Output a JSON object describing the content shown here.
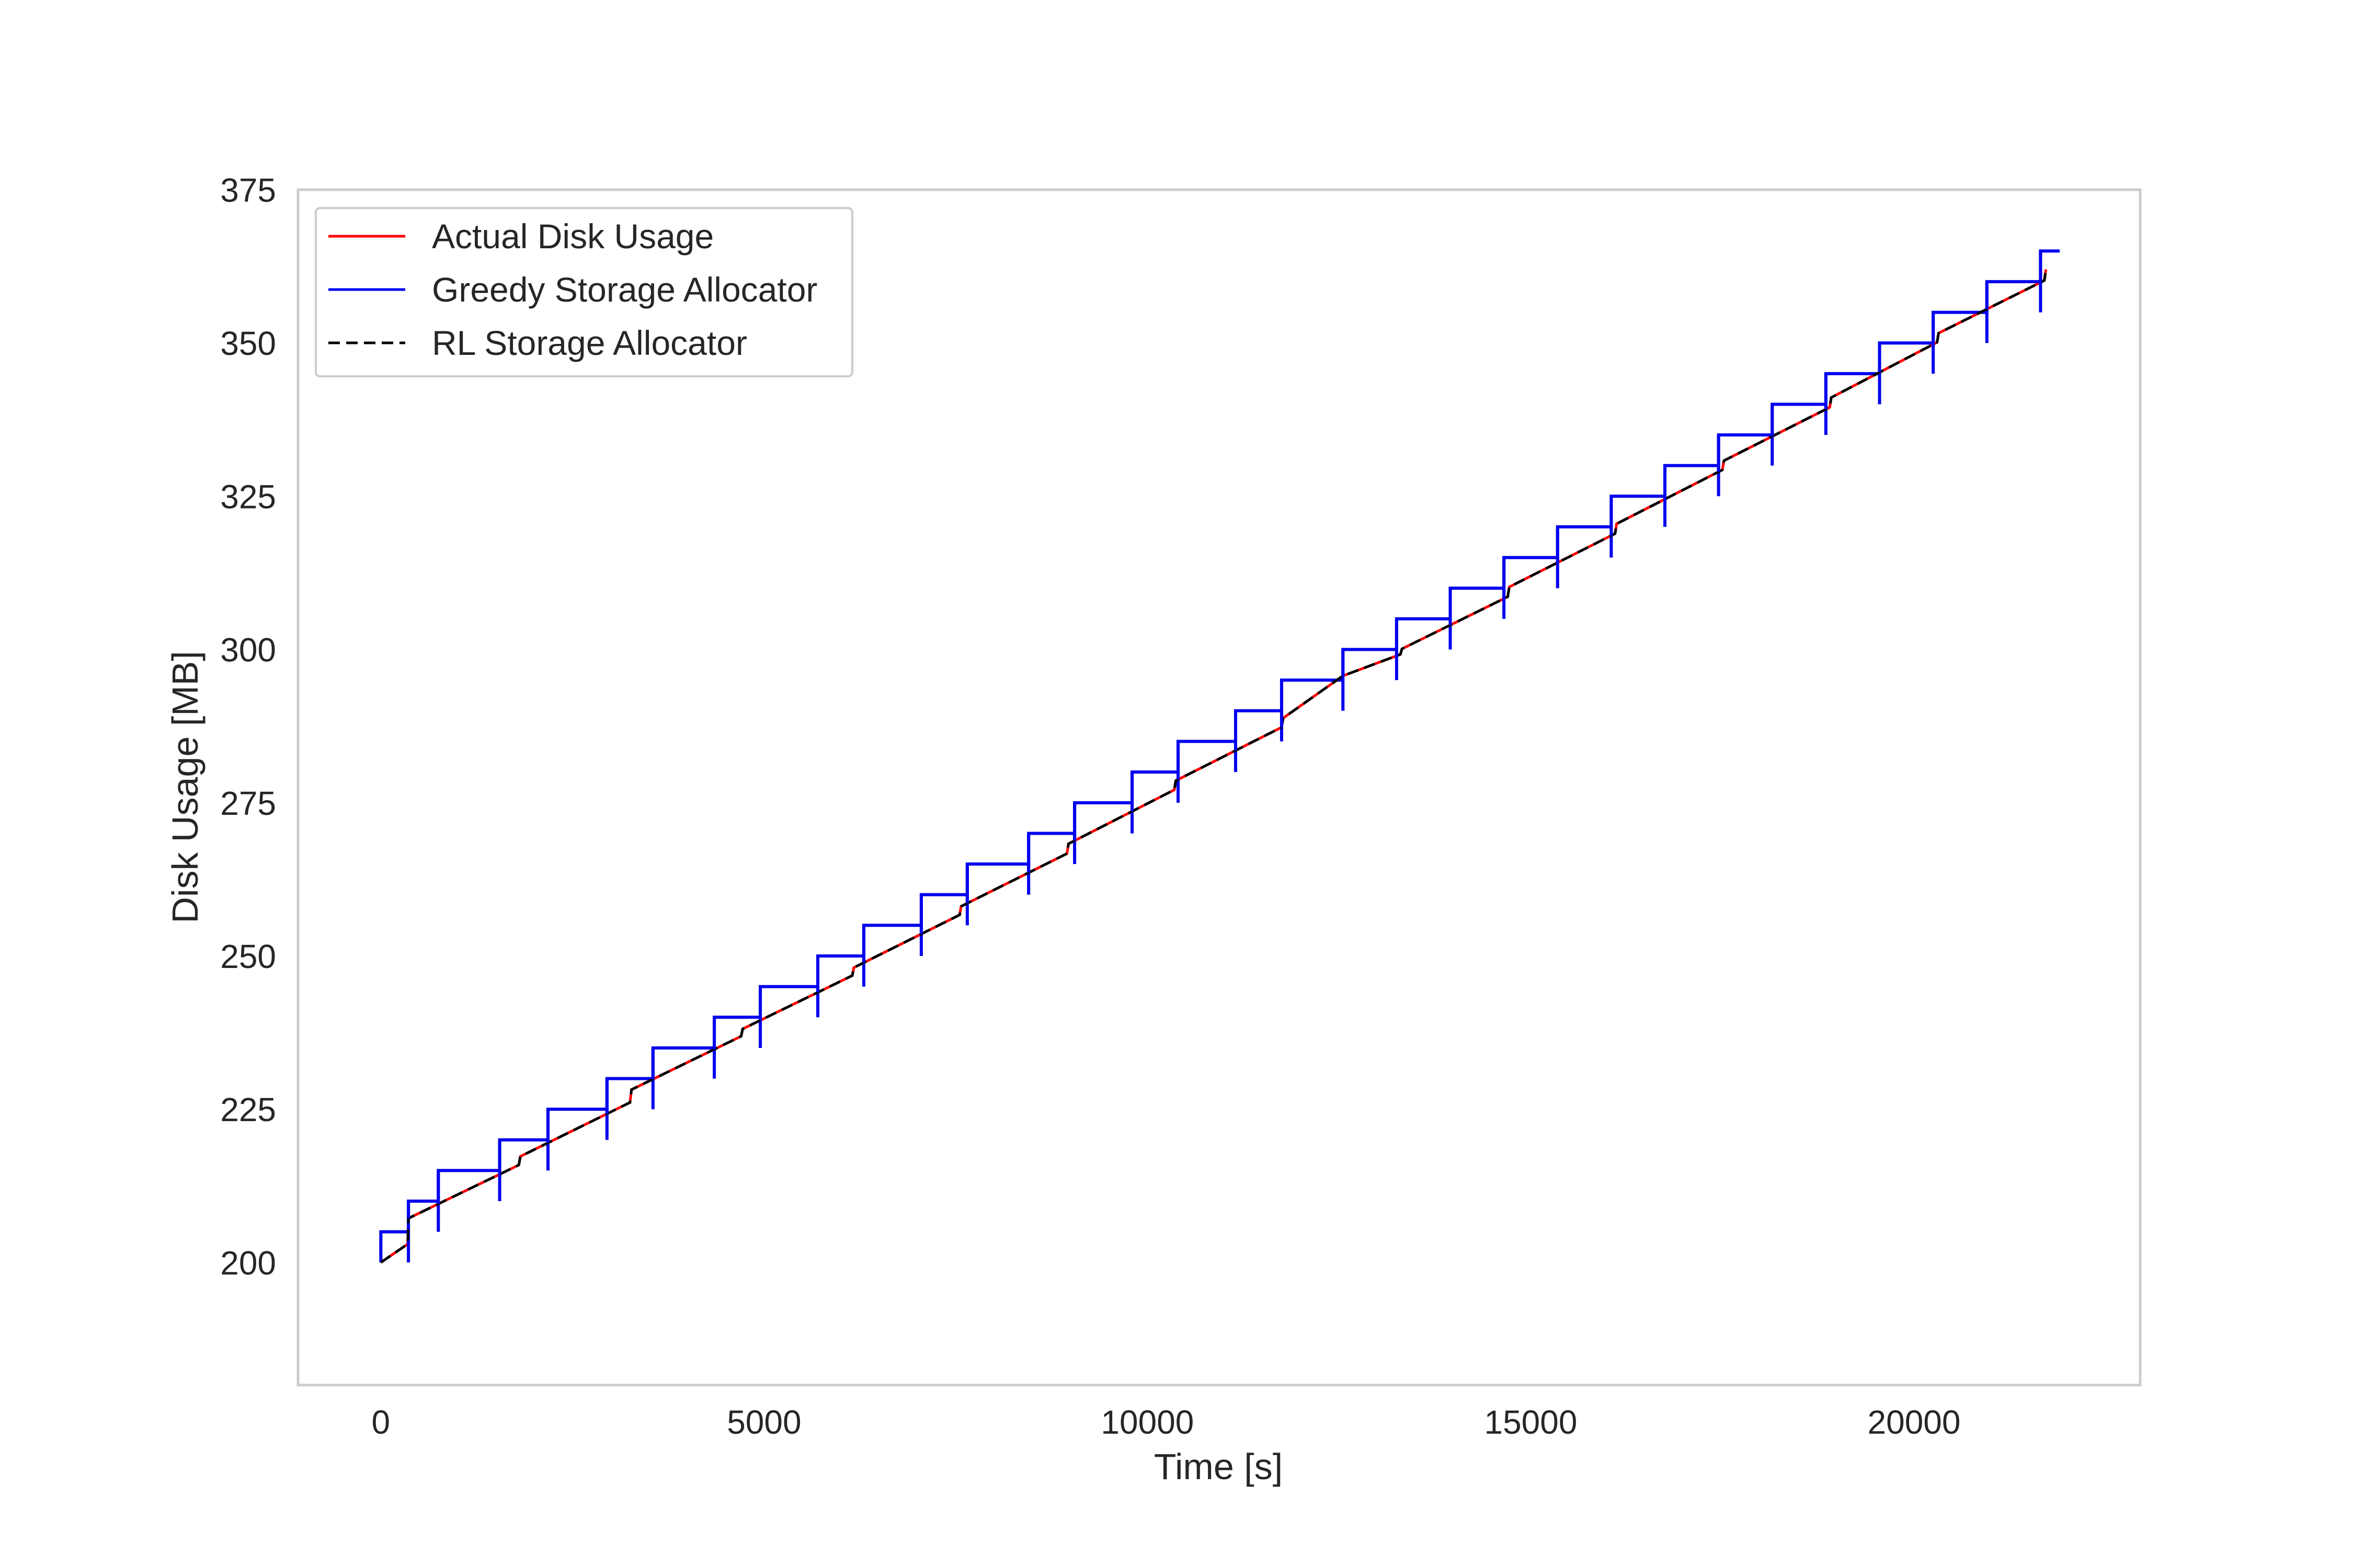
{
  "chart_data": {
    "type": "line",
    "title": "",
    "xlabel": "Time [s]",
    "ylabel": "Disk Usage [MB]",
    "xlim": [
      -1080,
      22950
    ],
    "ylim": [
      180,
      375
    ],
    "xticks": [
      0,
      5000,
      10000,
      15000,
      20000
    ],
    "yticks": [
      200,
      225,
      250,
      275,
      300,
      325,
      350,
      375
    ],
    "xtick_labels": [
      "0",
      "5000",
      "10000",
      "15000",
      "20000"
    ],
    "ytick_labels": [
      "200",
      "225",
      "250",
      "275",
      "300",
      "325",
      "350",
      "375"
    ],
    "grid": false,
    "legend_position": "upper-left",
    "series": [
      {
        "name": "Actual Disk Usage",
        "color": "#ff0000",
        "style": "solid",
        "x": [
          0,
          350,
          360,
          1800,
          1820,
          3250,
          3270,
          4700,
          4720,
          6150,
          6170,
          7550,
          7570,
          8950,
          8970,
          10350,
          10370,
          11750,
          11770,
          12550,
          13300,
          13320,
          14700,
          14720,
          16100,
          16120,
          17500,
          17520,
          18900,
          18920,
          20300,
          20320,
          21700,
          21720
        ],
        "y": [
          200,
          203,
          207.2,
          215.9,
          217.3,
          226.1,
          228.2,
          236.9,
          238.1,
          246.8,
          248.1,
          256.7,
          258.1,
          266.7,
          268.3,
          277.1,
          278.6,
          287.3,
          288.8,
          295.7,
          299.2,
          300.1,
          308.6,
          310.2,
          318.9,
          320.5,
          329.3,
          330.8,
          339.5,
          341.1,
          350.1,
          351.6,
          360.2,
          362
        ]
      },
      {
        "name": "Greedy Storage Allocator",
        "color": "#0000ee",
        "style": "step",
        "x": [
          0,
          360,
          750,
          1550,
          2180,
          2950,
          3550,
          4350,
          4950,
          5700,
          6300,
          7050,
          7650,
          8450,
          9050,
          9800,
          10400,
          11150,
          11750,
          12550,
          13250,
          13950,
          14650,
          15350,
          16050,
          16750,
          17450,
          18150,
          18850,
          19550,
          20250,
          20950,
          21650,
          21900
        ],
        "y": [
          205,
          210,
          215,
          220,
          225,
          230,
          235,
          240,
          245,
          250,
          255,
          260,
          265,
          270,
          275,
          280,
          285,
          290,
          295,
          300,
          305,
          310,
          315,
          320,
          325,
          330,
          335,
          340,
          345,
          350,
          355,
          360,
          365,
          365
        ]
      },
      {
        "name": "RL Storage Allocator",
        "color": "#000000",
        "style": "dashed",
        "x": [
          0,
          350,
          360,
          1800,
          1820,
          3250,
          3270,
          4700,
          4720,
          6150,
          6170,
          7550,
          7570,
          8950,
          8970,
          10350,
          10370,
          11750,
          11770,
          12550,
          13300,
          13320,
          14700,
          14720,
          16100,
          16120,
          17500,
          17520,
          18900,
          18920,
          20300,
          20320,
          21700,
          21720
        ],
        "y": [
          200,
          203,
          207.2,
          215.9,
          217.3,
          226.1,
          228.2,
          236.9,
          238.1,
          246.8,
          248.1,
          256.7,
          258.1,
          266.7,
          268.3,
          277.1,
          278.6,
          287.3,
          288.8,
          295.7,
          299.2,
          300.1,
          308.6,
          310.2,
          318.9,
          320.5,
          329.3,
          330.8,
          339.5,
          341.1,
          350.1,
          351.6,
          360.2,
          362
        ]
      }
    ]
  }
}
